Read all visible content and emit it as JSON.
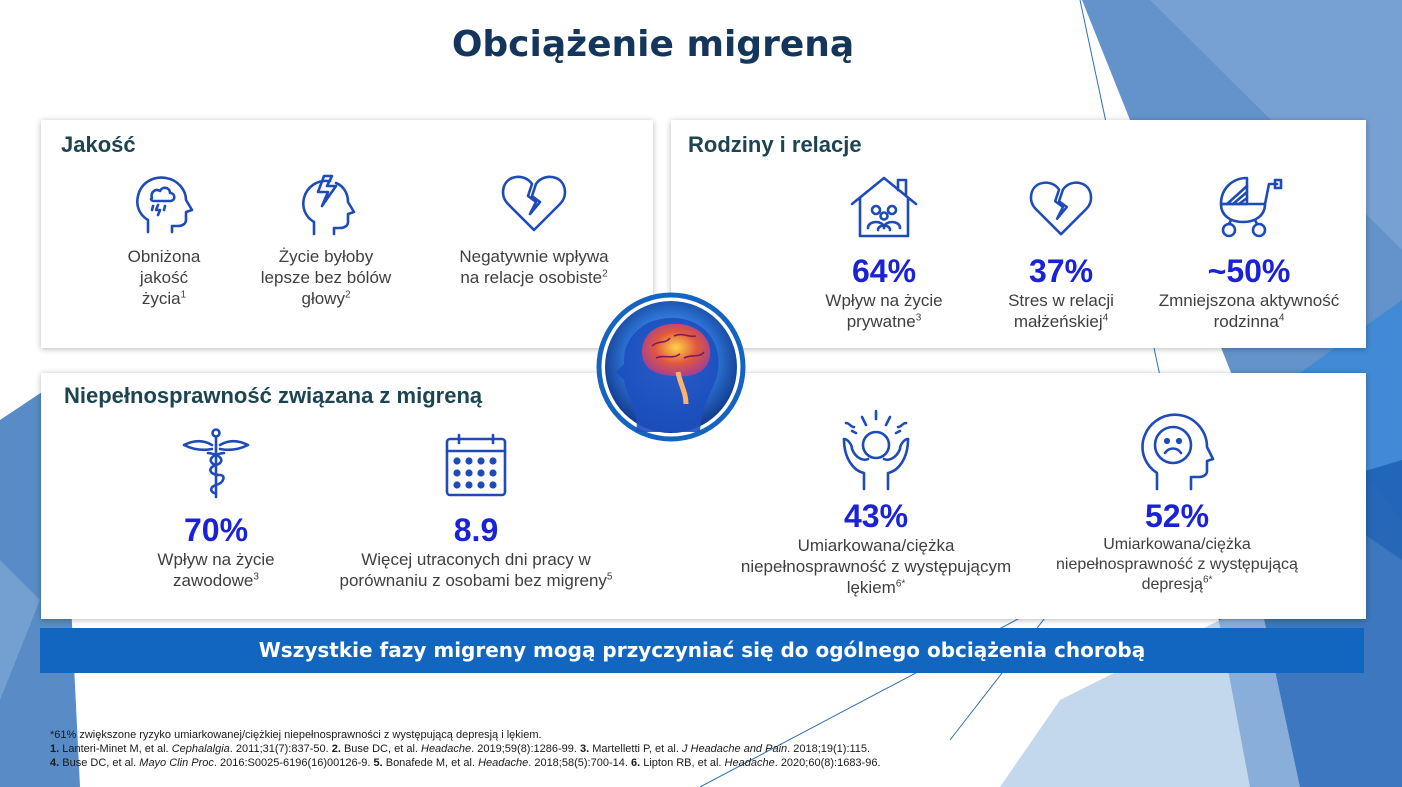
{
  "title": "Obciążenie migreną",
  "colors": {
    "accent": "#1a22d8",
    "title": "#14365d",
    "banner": "#1366c0",
    "icon": "#1f4bb8"
  },
  "jakosc": {
    "title": "Jakość",
    "items": [
      {
        "icon": "head-storm-icon",
        "lines": [
          "Obniżona",
          "jakość"
        ],
        "last": "życia",
        "sup": "1"
      },
      {
        "icon": "head-lightning-icon",
        "lines": [
          "Życie byłoby",
          "lepsze bez bólów"
        ],
        "last": "głowy",
        "sup": "2"
      },
      {
        "icon": "broken-heart-icon",
        "lines": [
          "Negatywnie wpływa"
        ],
        "last": "na relacje osobiste",
        "sup": "2"
      }
    ]
  },
  "rodziny": {
    "title": "Rodziny i relacje",
    "items": [
      {
        "icon": "house-family-icon",
        "stat": "64%",
        "lines": [
          "Wpływ na życie"
        ],
        "last": "prywatne",
        "sup": "3"
      },
      {
        "icon": "broken-heart-icon",
        "stat": "37%",
        "lines": [
          "Stres w relacji"
        ],
        "last": "małżeńskiej",
        "sup": "4"
      },
      {
        "icon": "stroller-icon",
        "stat": "~50%",
        "lines": [
          "Zmniejszona aktywność"
        ],
        "last": "rodzinna",
        "sup": "4"
      }
    ]
  },
  "niepelnosprawnosc": {
    "title": "Niepełnosprawność związana z migreną",
    "items": [
      {
        "icon": "caduceus-icon",
        "stat": "70%",
        "lines": [
          "Wpływ na życie"
        ],
        "last": "zawodowe",
        "sup": "3"
      },
      {
        "icon": "calendar-icon",
        "stat": "8.9",
        "lines": [
          "Więcej utraconych dni pracy w"
        ],
        "last": "porównaniu z osobami bez migreny",
        "sup": "5"
      },
      {
        "icon": "anxious-person-icon",
        "stat": "43%",
        "lines": [
          "Umiarkowana/ciężka",
          "niepełnosprawność z występującym"
        ],
        "last": "lękiem",
        "sup": "6*"
      },
      {
        "icon": "sad-head-icon",
        "stat": "52%",
        "lines": [
          "Umiarkowana/ciężka",
          "niepełnosprawność z występującą"
        ],
        "last": "depresją",
        "sup": "6*"
      }
    ]
  },
  "banner": "Wszystkie fazy migreny mogą przyczyniać się do ogólnego obciążenia chorobą",
  "footnotes": {
    "star": "*61% zwiększone ryzyko umiarkowanej/ciężkiej niepełnosprawności z występującą depresją i lękiem.",
    "refs": [
      {
        "n": "1.",
        "a": " Lanteri-Minet M, et al. ",
        "j": "Cephalalgia",
        "b": ". 2011;31(7):837-50. "
      },
      {
        "n": "2.",
        "a": " Buse DC, et al. ",
        "j": "Headache",
        "b": ". 2019;59(8):1286-99. "
      },
      {
        "n": "3.",
        "a": " Martelletti P, et al. ",
        "j": "J Headache and Pain",
        "b": ". 2018;19(1):115."
      },
      {
        "n": "4.",
        "a": " Buse DC, et al. ",
        "j": "Mayo Clin Proc",
        "b": ". 2016:S0025-6196(16)00126-9. "
      },
      {
        "n": "5.",
        "a": " Bonafede M, et al. ",
        "j": "Headache",
        "b": ". 2018;58(5):700-14. "
      },
      {
        "n": "6.",
        "a": " Lipton RB, et al. ",
        "j": "Headache",
        "b": ". 2020;60(8):1683-96."
      }
    ]
  }
}
